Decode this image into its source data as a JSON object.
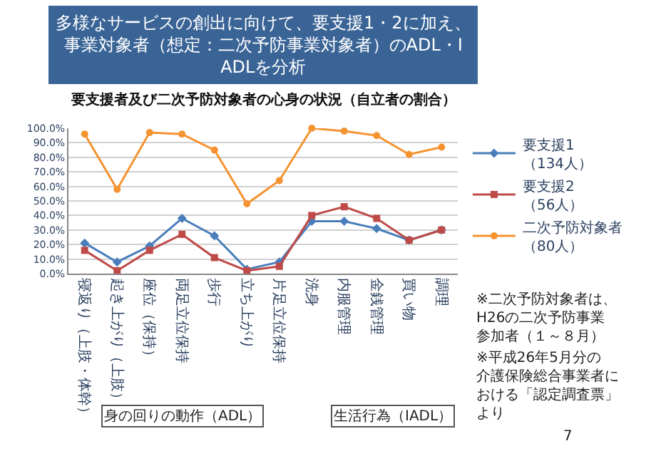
{
  "chart_data": {
    "type": "line",
    "title": "多様なサービスの創出に向けて、要支援1・2に加え、事業対象者（想定：二次予防事業対象者）のADL・IADLを分析",
    "subtitle": "要支援者及び二次予防対象者の心身の状況（自立者の割合）",
    "categories": [
      "寝返り（上肢・体幹）",
      "起き上がり（上肢）",
      "座位（保持）",
      "両足立位保持",
      "歩行",
      "立ち上がり",
      "片足立位保持",
      "洗身",
      "内服管理",
      "金銭管理",
      "買い物",
      "調理"
    ],
    "series": [
      {
        "name": "要支援1（134人）",
        "color": "#4a7ebb",
        "marker": "diamond",
        "values": [
          21,
          8,
          19,
          38,
          26,
          3,
          8,
          36,
          36,
          31,
          23,
          30
        ]
      },
      {
        "name": "要支援2（56人）",
        "color": "#be4b48",
        "marker": "square",
        "values": [
          16,
          2,
          16,
          27,
          11,
          2,
          5,
          40,
          46,
          38,
          23,
          30
        ]
      },
      {
        "name": "二次予防対象者（80人）",
        "color": "#f59331",
        "marker": "circle",
        "values": [
          96,
          58,
          97,
          96,
          85,
          48,
          64,
          100,
          98,
          95,
          82,
          87
        ]
      }
    ],
    "ylim": [
      0,
      100
    ],
    "yticks": [
      {
        "value": 0,
        "label": "0.0%"
      },
      {
        "value": 10,
        "label": "10.0%"
      },
      {
        "value": 20,
        "label": "20.0%"
      },
      {
        "value": 30,
        "label": "30.0%"
      },
      {
        "value": 40,
        "label": "40.0%"
      },
      {
        "value": 50,
        "label": "50.0%"
      },
      {
        "value": 60,
        "label": "60.0%"
      },
      {
        "value": 70,
        "label": "70.0%"
      },
      {
        "value": 80,
        "label": "80.0%"
      },
      {
        "value": 90,
        "label": "90.0%"
      },
      {
        "value": 100,
        "label": "100.0%"
      }
    ],
    "grid": "y",
    "legend": "right",
    "line_style": "solid",
    "annotations": [
      "身の回りの動作（ADL）",
      "生活行為（IADL）",
      "※二次予防対象者は、H26の二次予防事業参加者（１～８月）",
      "※平成26年5月分の介護保険総合事業者における「認定調査票」より",
      "7"
    ]
  }
}
